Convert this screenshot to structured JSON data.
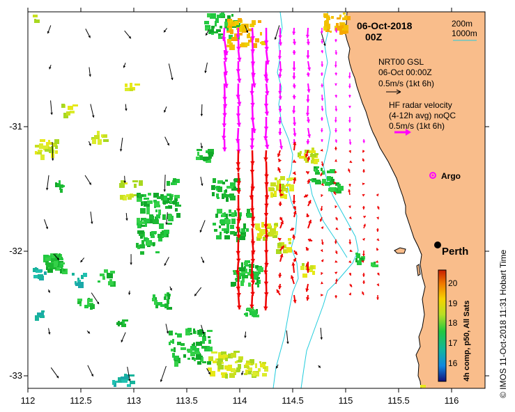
{
  "map": {
    "title_date": "06-Oct-2018",
    "title_time": "00Z",
    "extent": {
      "lon_min": 112,
      "lon_max": 116.3,
      "lat_min": -33.1,
      "lat_max": -30.1
    },
    "lon_ticks": [
      "112",
      "112.5",
      "113",
      "113.5",
      "114",
      "114.5",
      "115",
      "115.5",
      "116"
    ],
    "lat_ticks": [
      "-31",
      "-32",
      "-33"
    ],
    "contour_legend": {
      "line1": "200m",
      "line2": "1000m"
    },
    "gsl_legend": {
      "line1": "NRT00 GSL",
      "line2": "06-Oct 00:00Z",
      "line3": "0.5m/s (1kt 6h)"
    },
    "radar_legend": {
      "line1": "HF radar velocity",
      "line2": "(4-12h avg) noQC",
      "line3": "0.5m/s (1kt 6h)"
    },
    "argo_label": "Argo",
    "city_label": "Perth",
    "colorbar": {
      "ticks": [
        "20",
        "19",
        "18",
        "17",
        "16"
      ],
      "label": "4h comp, p50, All Sats"
    },
    "credit": "© IMOS 11-Oct-2018 11:31 Hobart Time",
    "colors": {
      "land": "#f9bd8b",
      "contour": "#22ccdd",
      "radar_north": "#ff00ff",
      "radar_south": "#ee0000",
      "gsl_arrow": "#000000"
    }
  }
}
